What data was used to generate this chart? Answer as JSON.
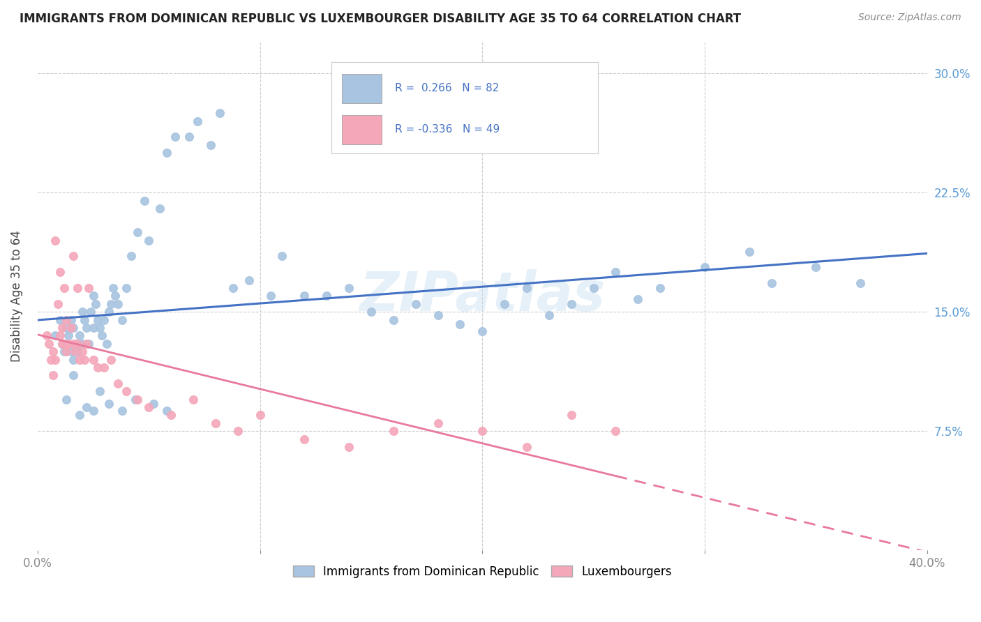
{
  "title": "IMMIGRANTS FROM DOMINICAN REPUBLIC VS LUXEMBOURGER DISABILITY AGE 35 TO 64 CORRELATION CHART",
  "source": "Source: ZipAtlas.com",
  "ylabel": "Disability Age 35 to 64",
  "xlim": [
    0.0,
    0.4
  ],
  "ylim": [
    0.0,
    0.32
  ],
  "yticks": [
    0.075,
    0.15,
    0.225,
    0.3
  ],
  "yticklabels": [
    "7.5%",
    "15.0%",
    "22.5%",
    "30.0%"
  ],
  "xtick_vals": [
    0.0,
    0.1,
    0.2,
    0.3,
    0.4
  ],
  "xticklabels": [
    "0.0%",
    "",
    "",
    "",
    "40.0%"
  ],
  "blue_R": 0.266,
  "blue_N": 82,
  "pink_R": -0.336,
  "pink_N": 49,
  "blue_color": "#a8c4e0",
  "pink_color": "#f4a7b9",
  "blue_line_color": "#4472c4",
  "pink_line_color": "#e8799c",
  "watermark": "ZIPatlas",
  "legend_label_blue": "Immigrants from Dominican Republic",
  "legend_label_pink": "Luxembourgers",
  "blue_points_x": [
    0.008,
    0.01,
    0.011,
    0.012,
    0.013,
    0.014,
    0.015,
    0.015,
    0.016,
    0.016,
    0.017,
    0.018,
    0.019,
    0.02,
    0.02,
    0.021,
    0.022,
    0.023,
    0.024,
    0.025,
    0.025,
    0.026,
    0.027,
    0.028,
    0.029,
    0.03,
    0.031,
    0.032,
    0.033,
    0.034,
    0.035,
    0.036,
    0.038,
    0.04,
    0.042,
    0.045,
    0.048,
    0.05,
    0.055,
    0.058,
    0.062,
    0.068,
    0.072,
    0.078,
    0.082,
    0.088,
    0.095,
    0.105,
    0.11,
    0.12,
    0.13,
    0.14,
    0.15,
    0.16,
    0.17,
    0.18,
    0.19,
    0.2,
    0.21,
    0.22,
    0.23,
    0.24,
    0.25,
    0.26,
    0.27,
    0.28,
    0.3,
    0.32,
    0.33,
    0.35,
    0.37,
    0.013,
    0.016,
    0.019,
    0.022,
    0.025,
    0.028,
    0.032,
    0.038,
    0.044,
    0.052,
    0.058
  ],
  "blue_points_y": [
    0.135,
    0.145,
    0.13,
    0.125,
    0.14,
    0.135,
    0.125,
    0.145,
    0.12,
    0.14,
    0.13,
    0.125,
    0.135,
    0.15,
    0.13,
    0.145,
    0.14,
    0.13,
    0.15,
    0.16,
    0.14,
    0.155,
    0.145,
    0.14,
    0.135,
    0.145,
    0.13,
    0.15,
    0.155,
    0.165,
    0.16,
    0.155,
    0.145,
    0.165,
    0.185,
    0.2,
    0.22,
    0.195,
    0.215,
    0.25,
    0.26,
    0.26,
    0.27,
    0.255,
    0.275,
    0.165,
    0.17,
    0.16,
    0.185,
    0.16,
    0.16,
    0.165,
    0.15,
    0.145,
    0.155,
    0.148,
    0.142,
    0.138,
    0.155,
    0.165,
    0.148,
    0.155,
    0.165,
    0.175,
    0.158,
    0.165,
    0.178,
    0.188,
    0.168,
    0.178,
    0.168,
    0.095,
    0.11,
    0.085,
    0.09,
    0.088,
    0.1,
    0.092,
    0.088,
    0.095,
    0.092,
    0.088
  ],
  "pink_points_x": [
    0.004,
    0.005,
    0.006,
    0.007,
    0.008,
    0.008,
    0.009,
    0.01,
    0.01,
    0.011,
    0.011,
    0.012,
    0.012,
    0.013,
    0.013,
    0.014,
    0.015,
    0.016,
    0.016,
    0.017,
    0.018,
    0.018,
    0.019,
    0.02,
    0.021,
    0.022,
    0.023,
    0.025,
    0.027,
    0.03,
    0.033,
    0.036,
    0.04,
    0.045,
    0.05,
    0.06,
    0.07,
    0.08,
    0.09,
    0.1,
    0.12,
    0.14,
    0.16,
    0.18,
    0.2,
    0.22,
    0.24,
    0.26,
    0.007
  ],
  "pink_points_y": [
    0.135,
    0.13,
    0.12,
    0.125,
    0.195,
    0.12,
    0.155,
    0.175,
    0.135,
    0.14,
    0.13,
    0.165,
    0.13,
    0.145,
    0.125,
    0.13,
    0.14,
    0.185,
    0.13,
    0.125,
    0.13,
    0.165,
    0.12,
    0.125,
    0.12,
    0.13,
    0.165,
    0.12,
    0.115,
    0.115,
    0.12,
    0.105,
    0.1,
    0.095,
    0.09,
    0.085,
    0.095,
    0.08,
    0.075,
    0.085,
    0.07,
    0.065,
    0.075,
    0.08,
    0.075,
    0.065,
    0.085,
    0.075,
    0.11
  ]
}
